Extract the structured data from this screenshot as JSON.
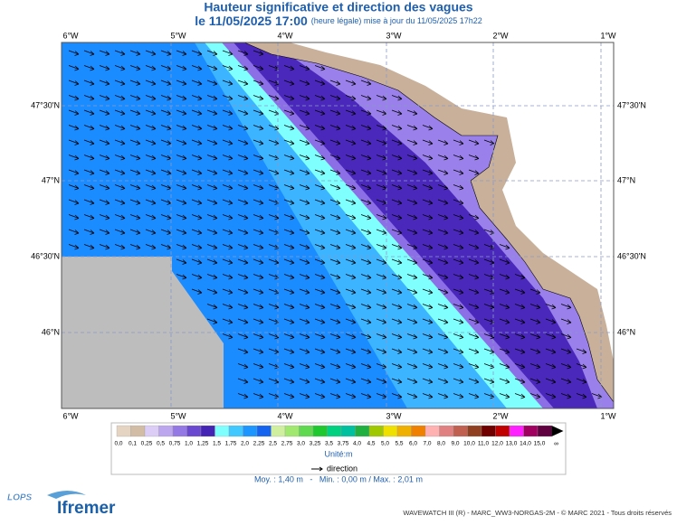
{
  "header": {
    "title": "Hauteur significative et direction des vagues",
    "date": "le 11/05/2025 17:00",
    "update": "(heure légale) mise à jour du 11/05/2025 17h22"
  },
  "map": {
    "lon_labels": [
      "6°W",
      "5°W",
      "4°W",
      "3°W",
      "2°W",
      "1°W"
    ],
    "lat_labels": [
      "47°30'N",
      "47°N",
      "46°30'N",
      "46°N"
    ]
  },
  "legend": {
    "classes": [
      {
        "label": "0,0",
        "color": "#e6d4c2"
      },
      {
        "label": "0,1",
        "color": "#d2bca6"
      },
      {
        "label": "0,25",
        "color": "#dccdf6"
      },
      {
        "label": "0,5",
        "color": "#bca6ee"
      },
      {
        "label": "0,75",
        "color": "#9478e4"
      },
      {
        "label": "1,0",
        "color": "#6a48d0"
      },
      {
        "label": "1,25",
        "color": "#4424b4"
      },
      {
        "label": "1,5",
        "color": "#80ffff"
      },
      {
        "label": "1,75",
        "color": "#40c8ff"
      },
      {
        "label": "2,0",
        "color": "#1e96ff"
      },
      {
        "label": "2,25",
        "color": "#1464f0"
      },
      {
        "label": "2,5",
        "color": "#d0f0a0"
      },
      {
        "label": "2,75",
        "color": "#a0e870"
      },
      {
        "label": "3,0",
        "color": "#60d850"
      },
      {
        "label": "3,25",
        "color": "#20c830"
      },
      {
        "label": "3,5",
        "color": "#00d080"
      },
      {
        "label": "3,75",
        "color": "#00c0a0"
      },
      {
        "label": "4,0",
        "color": "#20b040"
      },
      {
        "label": "4,5",
        "color": "#a0c800"
      },
      {
        "label": "5,0",
        "color": "#f0e000"
      },
      {
        "label": "5,5",
        "color": "#f0b000"
      },
      {
        "label": "6,0",
        "color": "#f08000"
      },
      {
        "label": "7,0",
        "color": "#ffb0b0"
      },
      {
        "label": "8,0",
        "color": "#e08080"
      },
      {
        "label": "9,0",
        "color": "#c06050"
      },
      {
        "label": "10,0",
        "color": "#904020"
      },
      {
        "label": "11,0",
        "color": "#700000"
      },
      {
        "label": "12,0",
        "color": "#c00000"
      },
      {
        "label": "13,0",
        "color": "#ff20ff"
      },
      {
        "label": "14,0",
        "color": "#a00060"
      },
      {
        "label": "15,0",
        "color": "#600040"
      }
    ],
    "infinity": "∞",
    "unit": "Unité:m",
    "direction": "direction"
  },
  "stats": "Moy. : 1,40 m   -   Min. : 0,00 m / Max. : 2,01 m",
  "footer": {
    "credits": "WAVEWATCH III (R) - MARC_WW3-NORGAS-2M - © MARC 2021 - Tous droits réservés",
    "logo": "Ifremer",
    "lab": "LOPS"
  }
}
